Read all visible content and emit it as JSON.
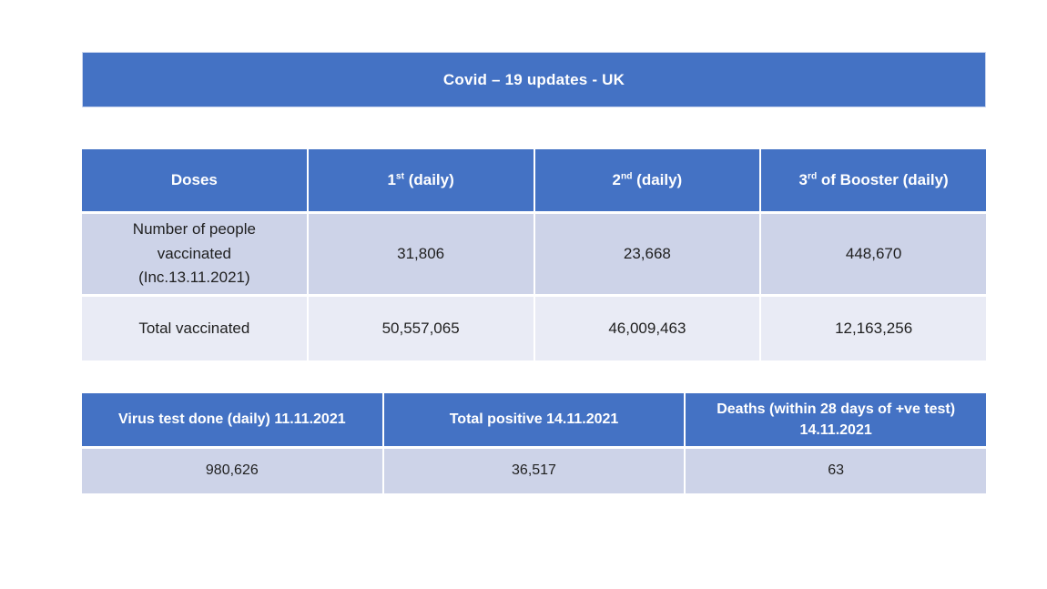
{
  "slide": {
    "title": "Covid – 19 updates - UK"
  },
  "colors": {
    "header_blue": "#4472C4",
    "band_light": "#CDD3E8",
    "band_lighter": "#E9EBF5",
    "header_text": "#FFFFFF",
    "body_text": "#1F1F1F"
  },
  "vaccination_table": {
    "headers": [
      {
        "base": "Doses",
        "sup": "",
        "rest": ""
      },
      {
        "base": "1",
        "sup": "st",
        "rest": " (daily)"
      },
      {
        "base": "2",
        "sup": "nd",
        "rest": "  (daily)"
      },
      {
        "base": "3",
        "sup": "rd",
        "rest": " of Booster (daily)"
      }
    ],
    "rows": [
      {
        "label": "Number of people\nvaccinated\n(Inc.13.11.2021)",
        "values": [
          "31,806",
          "23,668",
          "448,670"
        ]
      },
      {
        "label": "Total vaccinated",
        "values": [
          "50,557,065",
          "46,009,463",
          "12,163,256"
        ]
      }
    ]
  },
  "summary_table": {
    "headers": [
      "Virus test done (daily) 11.11.2021",
      "Total positive 14.11.2021",
      "Deaths (within 28 days of +ve test)\n14.11.2021"
    ],
    "values": [
      "980,626",
      "36,517",
      "63"
    ]
  }
}
